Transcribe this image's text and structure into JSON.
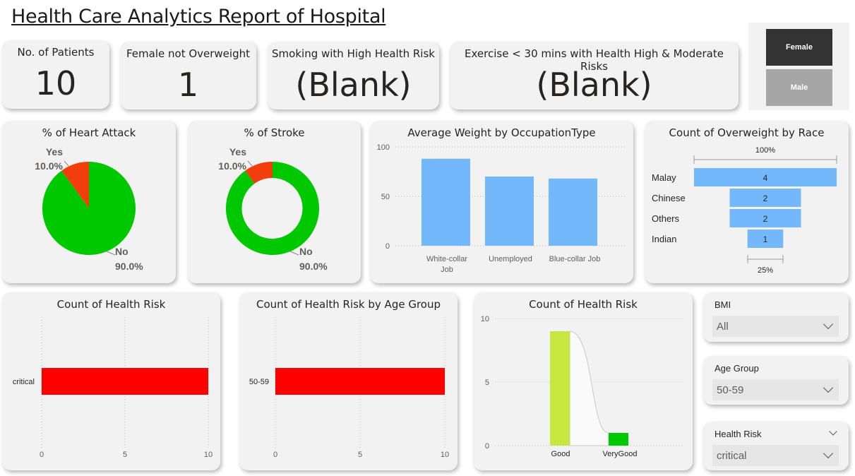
{
  "page_title": "Health Care Analytics Report of Hospital",
  "kpis": {
    "patients": {
      "label": "No. of Patients",
      "value": "10"
    },
    "female_not_overweight": {
      "label": "Female not Overweight",
      "value": "1"
    },
    "smoking_high_risk": {
      "label": "Smoking with High Health Risk",
      "value": "(Blank)"
    },
    "exercise_risk": {
      "label": "Exercise < 30 mins with Health High & Moderate Risks",
      "value": "(Blank)"
    }
  },
  "gender_slicer": {
    "female": "Female",
    "male": "Male",
    "selected": "Female"
  },
  "heart_attack": {
    "title": "% of Heart Attack",
    "yes_label": "Yes",
    "yes_pct": "10.0%",
    "no_label": "No",
    "no_pct": "90.0%",
    "colors": {
      "yes": "#f23e0c",
      "no": "#00c800"
    }
  },
  "stroke": {
    "title": "% of Stroke",
    "yes_label": "Yes",
    "yes_pct": "10.0%",
    "no_label": "No",
    "no_pct": "90.0%"
  },
  "avg_weight": {
    "title": "Average Weight by OccupationType",
    "ticks": [
      "100",
      "50",
      "0"
    ],
    "cat1_line1": "White-collar",
    "cat1_line2": "Job",
    "cat2": "Unemployed",
    "cat3": "Blue-collar Job"
  },
  "overweight_race": {
    "title": "Count of Overweight by Race",
    "top_pct": "100%",
    "bottom_pct": "25%",
    "rows": [
      {
        "label": "Malay",
        "value": "4"
      },
      {
        "label": "Chinese",
        "value": "2"
      },
      {
        "label": "Others",
        "value": "2"
      },
      {
        "label": "Indian",
        "value": "1"
      }
    ]
  },
  "health_risk_bar": {
    "title": "Count of Health Risk",
    "category": "critical",
    "ticks": [
      "0",
      "5",
      "10"
    ]
  },
  "age_group_bar": {
    "title": "Count of Health Risk by Age Group",
    "category": "50-59",
    "ticks": [
      "0",
      "5",
      "10"
    ]
  },
  "health_risk_ribbon": {
    "title": "Count of Health Risk",
    "ticks": [
      "10",
      "5",
      "0"
    ],
    "cat1": "Good",
    "cat2": "VeryGood"
  },
  "filters": {
    "bmi": {
      "label": "BMI",
      "value": "All"
    },
    "age_group": {
      "label": "Age Group",
      "value": "50-59"
    },
    "health_risk": {
      "label": "Health Risk",
      "value": "critical"
    }
  },
  "colors": {
    "bar_blue": "#74b8fc",
    "bar_red": "#ff0000",
    "ribbon_good": "#c8e640",
    "ribbon_verygood": "#00c800"
  },
  "chart_data": [
    {
      "type": "pie",
      "title": "% of Heart Attack",
      "categories": [
        "Yes",
        "No"
      ],
      "values": [
        10.0,
        90.0
      ]
    },
    {
      "type": "pie",
      "title": "% of Stroke",
      "categories": [
        "Yes",
        "No"
      ],
      "values": [
        10.0,
        90.0
      ]
    },
    {
      "type": "bar",
      "title": "Average Weight by OccupationType",
      "categories": [
        "White-collar Job",
        "Unemployed",
        "Blue-collar Job"
      ],
      "values": [
        88,
        70,
        68
      ],
      "ylim": [
        0,
        100
      ],
      "grid": true
    },
    {
      "type": "bar",
      "title": "Count of Overweight by Race",
      "categories": [
        "Malay",
        "Chinese",
        "Others",
        "Indian"
      ],
      "values": [
        4,
        2,
        2,
        1
      ]
    },
    {
      "type": "bar",
      "title": "Count of Health Risk",
      "categories": [
        "critical"
      ],
      "values": [
        10
      ],
      "xlim": [
        0,
        10
      ],
      "grid": true
    },
    {
      "type": "bar",
      "title": "Count of Health Risk by Age Group",
      "categories": [
        "50-59"
      ],
      "values": [
        10
      ],
      "xlim": [
        0,
        10
      ],
      "grid": true
    },
    {
      "type": "bar",
      "title": "Count of Health Risk",
      "categories": [
        "Good",
        "VeryGood"
      ],
      "values": [
        9,
        1
      ],
      "ylim": [
        0,
        10
      ],
      "grid": true
    }
  ]
}
